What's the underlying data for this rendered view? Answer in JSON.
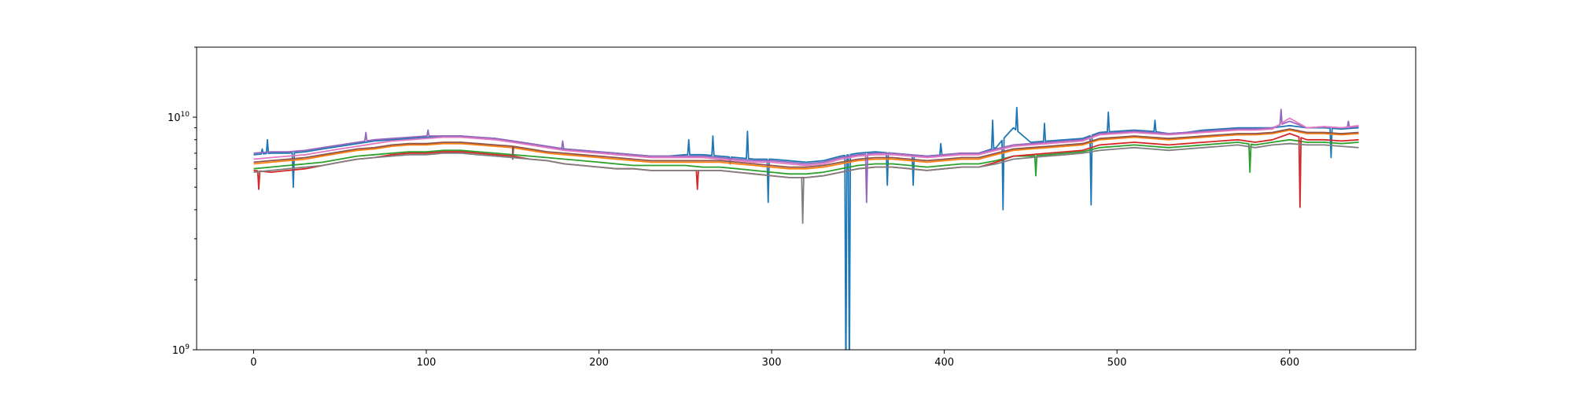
{
  "chart_data": {
    "type": "line",
    "title": "",
    "xlabel": "",
    "ylabel": "",
    "xlim": [
      -33,
      673
    ],
    "ylim": [
      1000000000.0,
      20000000000.0
    ],
    "yscale": "log",
    "grid": false,
    "legend": "none",
    "x_ticks": [
      {
        "value": 0,
        "label": "0"
      },
      {
        "value": 100,
        "label": "100"
      },
      {
        "value": 200,
        "label": "200"
      },
      {
        "value": 300,
        "label": "300"
      },
      {
        "value": 400,
        "label": "400"
      },
      {
        "value": 500,
        "label": "500"
      },
      {
        "value": 600,
        "label": "600"
      }
    ],
    "y_ticks": [
      {
        "value": 1000000000.0,
        "base": "10",
        "exp": "9"
      },
      {
        "value": 10000000000.0,
        "base": "10",
        "exp": "10"
      }
    ],
    "x": [
      0,
      10,
      20,
      30,
      40,
      50,
      60,
      70,
      80,
      90,
      100,
      110,
      120,
      130,
      140,
      150,
      160,
      170,
      180,
      190,
      200,
      210,
      220,
      230,
      240,
      250,
      260,
      270,
      280,
      290,
      300,
      310,
      320,
      330,
      340,
      350,
      360,
      370,
      380,
      390,
      400,
      410,
      420,
      430,
      440,
      450,
      460,
      470,
      480,
      490,
      500,
      510,
      520,
      530,
      540,
      550,
      560,
      570,
      580,
      590,
      600,
      610,
      620,
      630,
      640
    ],
    "series": [
      {
        "color": "#1f77b4",
        "values": [
          6900000000.0,
          7000000000.0,
          7000000000.0,
          7100000000.0,
          7300000000.0,
          7500000000.0,
          7700000000.0,
          7900000000.0,
          8000000000.0,
          8100000000.0,
          8200000000.0,
          8300000000.0,
          8300000000.0,
          8200000000.0,
          8100000000.0,
          7900000000.0,
          7700000000.0,
          7500000000.0,
          7300000000.0,
          7200000000.0,
          7100000000.0,
          7000000000.0,
          6900000000.0,
          6800000000.0,
          6800000000.0,
          6900000000.0,
          6900000000.0,
          6800000000.0,
          6700000000.0,
          6600000000.0,
          6600000000.0,
          6500000000.0,
          6400000000.0,
          6500000000.0,
          6800000000.0,
          7000000000.0,
          7100000000.0,
          7000000000.0,
          6900000000.0,
          6800000000.0,
          6900000000.0,
          7000000000.0,
          7000000000.0,
          7400000000.0,
          9000000000.0,
          7800000000.0,
          7900000000.0,
          8000000000.0,
          8100000000.0,
          8600000000.0,
          8700000000.0,
          8800000000.0,
          8700000000.0,
          8500000000.0,
          8600000000.0,
          8800000000.0,
          8900000000.0,
          9000000000.0,
          9000000000.0,
          9000000000.0,
          9200000000.0,
          9000000000.0,
          9000000000.0,
          8900000000.0,
          9000000000.0
        ]
      },
      {
        "color": "#ff7f0e",
        "values": [
          6300000000.0,
          6400000000.0,
          6500000000.0,
          6600000000.0,
          6800000000.0,
          7000000000.0,
          7200000000.0,
          7300000000.0,
          7500000000.0,
          7600000000.0,
          7600000000.0,
          7700000000.0,
          7700000000.0,
          7600000000.0,
          7500000000.0,
          7400000000.0,
          7200000000.0,
          7000000000.0,
          6900000000.0,
          6800000000.0,
          6700000000.0,
          6600000000.0,
          6500000000.0,
          6400000000.0,
          6400000000.0,
          6400000000.0,
          6400000000.0,
          6400000000.0,
          6300000000.0,
          6200000000.0,
          6100000000.0,
          6000000000.0,
          6000000000.0,
          6100000000.0,
          6300000000.0,
          6500000000.0,
          6600000000.0,
          6600000000.0,
          6500000000.0,
          6400000000.0,
          6500000000.0,
          6600000000.0,
          6600000000.0,
          6900000000.0,
          7200000000.0,
          7300000000.0,
          7400000000.0,
          7500000000.0,
          7600000000.0,
          8000000000.0,
          8100000000.0,
          8200000000.0,
          8100000000.0,
          8000000000.0,
          8100000000.0,
          8200000000.0,
          8300000000.0,
          8400000000.0,
          8400000000.0,
          8500000000.0,
          8800000000.0,
          8500000000.0,
          8500000000.0,
          8400000000.0,
          8500000000.0
        ]
      },
      {
        "color": "#2ca02c",
        "values": [
          6000000000.0,
          6100000000.0,
          6200000000.0,
          6300000000.0,
          6400000000.0,
          6600000000.0,
          6800000000.0,
          6900000000.0,
          7000000000.0,
          7100000000.0,
          7100000000.0,
          7200000000.0,
          7200000000.0,
          7100000000.0,
          7000000000.0,
          6900000000.0,
          6800000000.0,
          6700000000.0,
          6600000000.0,
          6500000000.0,
          6400000000.0,
          6300000000.0,
          6200000000.0,
          6200000000.0,
          6200000000.0,
          6200000000.0,
          6100000000.0,
          6100000000.0,
          6000000000.0,
          5900000000.0,
          5800000000.0,
          5700000000.0,
          5700000000.0,
          5800000000.0,
          6000000000.0,
          6200000000.0,
          6300000000.0,
          6300000000.0,
          6200000000.0,
          6100000000.0,
          6200000000.0,
          6300000000.0,
          6300000000.0,
          6500000000.0,
          6800000000.0,
          6800000000.0,
          6900000000.0,
          7000000000.0,
          7100000000.0,
          7400000000.0,
          7500000000.0,
          7600000000.0,
          7500000000.0,
          7400000000.0,
          7500000000.0,
          7600000000.0,
          7700000000.0,
          7800000000.0,
          7600000000.0,
          7800000000.0,
          8000000000.0,
          7800000000.0,
          7800000000.0,
          7700000000.0,
          7800000000.0
        ]
      },
      {
        "color": "#d62728",
        "values": [
          5900000000.0,
          5800000000.0,
          5900000000.0,
          6000000000.0,
          6200000000.0,
          6400000000.0,
          6600000000.0,
          6700000000.0,
          6900000000.0,
          7000000000.0,
          7000000000.0,
          7100000000.0,
          7100000000.0,
          7000000000.0,
          6900000000.0,
          6800000000.0,
          6600000000.0,
          6500000000.0,
          6300000000.0,
          6200000000.0,
          6100000000.0,
          6000000000.0,
          6000000000.0,
          5900000000.0,
          5900000000.0,
          5900000000.0,
          5900000000.0,
          5900000000.0,
          5800000000.0,
          5700000000.0,
          5600000000.0,
          5500000000.0,
          5500000000.0,
          5600000000.0,
          5800000000.0,
          6000000000.0,
          6100000000.0,
          6100000000.0,
          6000000000.0,
          5900000000.0,
          6000000000.0,
          6100000000.0,
          6100000000.0,
          6400000000.0,
          6800000000.0,
          6900000000.0,
          7000000000.0,
          7100000000.0,
          7200000000.0,
          7600000000.0,
          7700000000.0,
          7800000000.0,
          7700000000.0,
          7600000000.0,
          7700000000.0,
          7800000000.0,
          7900000000.0,
          8000000000.0,
          7800000000.0,
          8000000000.0,
          8500000000.0,
          8000000000.0,
          8000000000.0,
          7900000000.0,
          8000000000.0
        ]
      },
      {
        "color": "#9467bd",
        "values": [
          7000000000.0,
          7100000000.0,
          7100000000.0,
          7200000000.0,
          7400000000.0,
          7600000000.0,
          7800000000.0,
          8000000000.0,
          8100000000.0,
          8200000000.0,
          8300000000.0,
          8300000000.0,
          8300000000.0,
          8200000000.0,
          8100000000.0,
          7900000000.0,
          7700000000.0,
          7500000000.0,
          7300000000.0,
          7200000000.0,
          7100000000.0,
          7000000000.0,
          6900000000.0,
          6800000000.0,
          6800000000.0,
          6800000000.0,
          6800000000.0,
          6700000000.0,
          6600000000.0,
          6500000000.0,
          6500000000.0,
          6400000000.0,
          6300000000.0,
          6400000000.0,
          6700000000.0,
          6900000000.0,
          7000000000.0,
          7000000000.0,
          6900000000.0,
          6800000000.0,
          6900000000.0,
          7000000000.0,
          7000000000.0,
          7300000000.0,
          7600000000.0,
          7700000000.0,
          7800000000.0,
          7900000000.0,
          8000000000.0,
          8500000000.0,
          8600000000.0,
          8700000000.0,
          8600000000.0,
          8500000000.0,
          8600000000.0,
          8700000000.0,
          8800000000.0,
          8900000000.0,
          8900000000.0,
          9000000000.0,
          9600000000.0,
          9000000000.0,
          9100000000.0,
          9000000000.0,
          9100000000.0
        ]
      },
      {
        "color": "#8c564b",
        "values": [
          6400000000.0,
          6500000000.0,
          6600000000.0,
          6700000000.0,
          6900000000.0,
          7100000000.0,
          7300000000.0,
          7400000000.0,
          7600000000.0,
          7700000000.0,
          7700000000.0,
          7800000000.0,
          7800000000.0,
          7700000000.0,
          7600000000.0,
          7500000000.0,
          7300000000.0,
          7100000000.0,
          7000000000.0,
          6900000000.0,
          6800000000.0,
          6700000000.0,
          6600000000.0,
          6500000000.0,
          6500000000.0,
          6500000000.0,
          6500000000.0,
          6500000000.0,
          6400000000.0,
          6300000000.0,
          6200000000.0,
          6100000000.0,
          6100000000.0,
          6200000000.0,
          6400000000.0,
          6600000000.0,
          6700000000.0,
          6700000000.0,
          6600000000.0,
          6500000000.0,
          6600000000.0,
          6700000000.0,
          6700000000.0,
          7000000000.0,
          7300000000.0,
          7400000000.0,
          7500000000.0,
          7600000000.0,
          7700000000.0,
          8100000000.0,
          8200000000.0,
          8300000000.0,
          8200000000.0,
          8100000000.0,
          8200000000.0,
          8300000000.0,
          8400000000.0,
          8500000000.0,
          8500000000.0,
          8600000000.0,
          8900000000.0,
          8600000000.0,
          8600000000.0,
          8500000000.0,
          8600000000.0
        ]
      },
      {
        "color": "#e377c2",
        "values": [
          6600000000.0,
          6700000000.0,
          6800000000.0,
          6900000000.0,
          7100000000.0,
          7300000000.0,
          7500000000.0,
          7700000000.0,
          7900000000.0,
          8000000000.0,
          8100000000.0,
          8200000000.0,
          8200000000.0,
          8100000000.0,
          8000000000.0,
          7800000000.0,
          7600000000.0,
          7400000000.0,
          7200000000.0,
          7100000000.0,
          7000000000.0,
          6900000000.0,
          6800000000.0,
          6700000000.0,
          6700000000.0,
          6700000000.0,
          6700000000.0,
          6600000000.0,
          6500000000.0,
          6400000000.0,
          6400000000.0,
          6300000000.0,
          6200000000.0,
          6300000000.0,
          6600000000.0,
          6800000000.0,
          6900000000.0,
          6900000000.0,
          6800000000.0,
          6700000000.0,
          6800000000.0,
          6900000000.0,
          6900000000.0,
          7200000000.0,
          7500000000.0,
          7600000000.0,
          7700000000.0,
          7800000000.0,
          7900000000.0,
          8400000000.0,
          8500000000.0,
          8600000000.0,
          8500000000.0,
          8400000000.0,
          8500000000.0,
          8600000000.0,
          8700000000.0,
          8800000000.0,
          8800000000.0,
          8900000000.0,
          9900000000.0,
          9000000000.0,
          9100000000.0,
          9000000000.0,
          9200000000.0
        ]
      },
      {
        "color": "#7f7f7f",
        "values": [
          5800000000.0,
          5900000000.0,
          6000000000.0,
          6100000000.0,
          6200000000.0,
          6400000000.0,
          6600000000.0,
          6700000000.0,
          6800000000.0,
          6900000000.0,
          6900000000.0,
          7000000000.0,
          7000000000.0,
          6900000000.0,
          6800000000.0,
          6700000000.0,
          6600000000.0,
          6500000000.0,
          6300000000.0,
          6200000000.0,
          6100000000.0,
          6000000000.0,
          6000000000.0,
          5900000000.0,
          5900000000.0,
          5900000000.0,
          5900000000.0,
          5900000000.0,
          5800000000.0,
          5700000000.0,
          5600000000.0,
          5500000000.0,
          5500000000.0,
          5600000000.0,
          5800000000.0,
          6000000000.0,
          6100000000.0,
          6100000000.0,
          6000000000.0,
          5900000000.0,
          6000000000.0,
          6100000000.0,
          6100000000.0,
          6300000000.0,
          6600000000.0,
          6700000000.0,
          6800000000.0,
          6900000000.0,
          7000000000.0,
          7200000000.0,
          7300000000.0,
          7400000000.0,
          7300000000.0,
          7200000000.0,
          7300000000.0,
          7400000000.0,
          7500000000.0,
          7600000000.0,
          7400000000.0,
          7600000000.0,
          7700000000.0,
          7600000000.0,
          7600000000.0,
          7500000000.0,
          7400000000.0
        ]
      }
    ],
    "spikes": [
      {
        "series": 0,
        "x": 5,
        "value": 7300000000.0
      },
      {
        "series": 0,
        "x": 8,
        "value": 8000000000.0
      },
      {
        "series": 0,
        "x": 23,
        "value": 5000000000.0
      },
      {
        "series": 3,
        "x": 3,
        "value": 4900000000.0
      },
      {
        "series": 4,
        "x": 65,
        "value": 8600000000.0
      },
      {
        "series": 4,
        "x": 101,
        "value": 8800000000.0
      },
      {
        "series": 5,
        "x": 150,
        "value": 6600000000.0
      },
      {
        "series": 4,
        "x": 179,
        "value": 7900000000.0
      },
      {
        "series": 3,
        "x": 257,
        "value": 4900000000.0
      },
      {
        "series": 0,
        "x": 252,
        "value": 8000000000.0
      },
      {
        "series": 0,
        "x": 266,
        "value": 8300000000.0
      },
      {
        "series": 0,
        "x": 276,
        "value": 6300000000.0
      },
      {
        "series": 0,
        "x": 286,
        "value": 8700000000.0
      },
      {
        "series": 0,
        "x": 298,
        "value": 4300000000.0
      },
      {
        "series": 7,
        "x": 318,
        "value": 3500000000.0
      },
      {
        "series": 0,
        "x": 343,
        "value": 1000000000.0
      },
      {
        "series": 0,
        "x": 345,
        "value": 1000000000.0
      },
      {
        "series": 4,
        "x": 355,
        "value": 4300000000.0
      },
      {
        "series": 0,
        "x": 367,
        "value": 5100000000.0
      },
      {
        "series": 0,
        "x": 382,
        "value": 5100000000.0
      },
      {
        "series": 0,
        "x": 398,
        "value": 7700000000.0
      },
      {
        "series": 0,
        "x": 428,
        "value": 9700000000.0
      },
      {
        "series": 0,
        "x": 434,
        "value": 4000000000.0
      },
      {
        "series": 0,
        "x": 442,
        "value": 11000000000.0
      },
      {
        "series": 0,
        "x": 458,
        "value": 9400000000.0
      },
      {
        "series": 2,
        "x": 453,
        "value": 5600000000.0
      },
      {
        "series": 0,
        "x": 485,
        "value": 4200000000.0
      },
      {
        "series": 0,
        "x": 495,
        "value": 10500000000.0
      },
      {
        "series": 0,
        "x": 522,
        "value": 9700000000.0
      },
      {
        "series": 2,
        "x": 577,
        "value": 5800000000.0
      },
      {
        "series": 4,
        "x": 595,
        "value": 10800000000.0
      },
      {
        "series": 3,
        "x": 606,
        "value": 4100000000.0
      },
      {
        "series": 0,
        "x": 624,
        "value": 6700000000.0
      },
      {
        "series": 4,
        "x": 634,
        "value": 9600000000.0
      }
    ]
  }
}
